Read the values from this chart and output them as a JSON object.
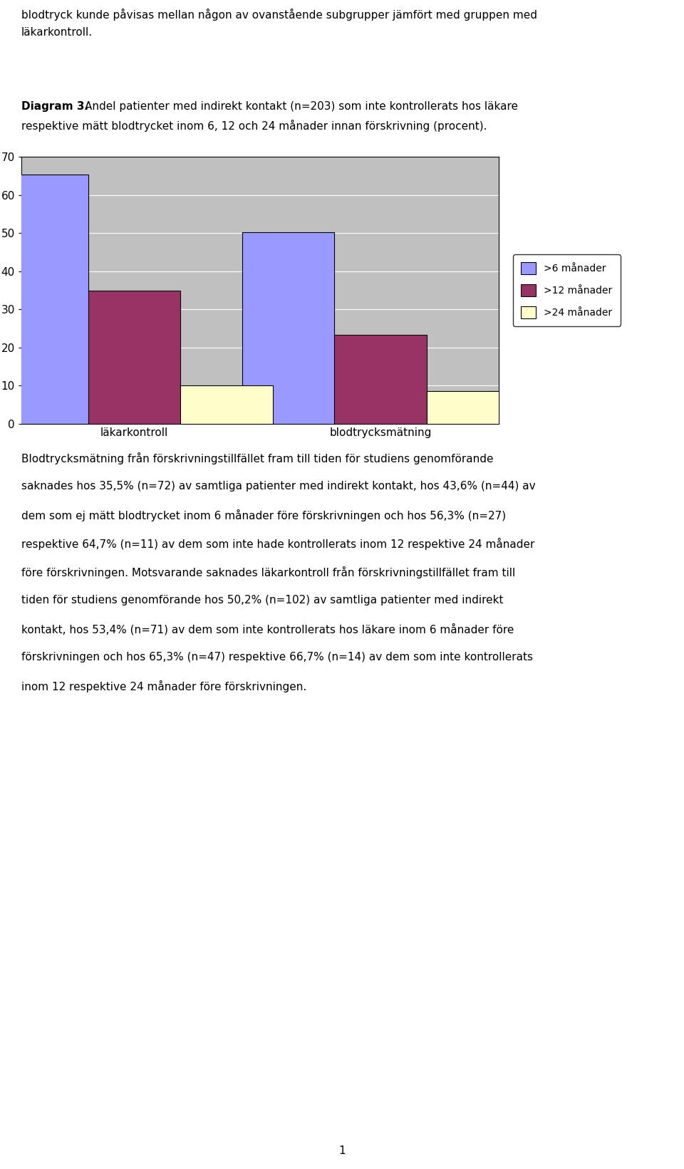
{
  "categories": [
    "läkarkontroll",
    "blodtrycksmätning"
  ],
  "series": [
    {
      "label": ">6 månader",
      "values": [
        65.3,
        50.2
      ],
      "color": "#9999FF"
    },
    {
      "label": ">12 månader",
      "values": [
        35.0,
        23.3
      ],
      "color": "#993366"
    },
    {
      "label": ">24 månader",
      "values": [
        10.0,
        8.5
      ],
      "color": "#FFFFCC"
    }
  ],
  "ylabel": "%",
  "ylim": [
    0,
    70
  ],
  "yticks": [
    0,
    10,
    20,
    30,
    40,
    50,
    60,
    70
  ],
  "plot_bg_color": "#C0C0C0",
  "bar_width": 0.18,
  "figure_bg": "#FFFFFF",
  "axis_color": "#000000",
  "grid_color": "#FFFFFF",
  "page_title_line1": "blodtryck kunde påvisas mellan någon av ovanstående subgrupper jämfört med gruppen med",
  "page_title_line2": "läkarkontroll.",
  "diagram_label": "Diagram 3.",
  "diagram_desc_line1": "Andel patienter med indirekt kontakt (n=203) som inte kontrollerats hos läkare",
  "diagram_desc_line2": "respektive mätt blodtrycket inom 6, 12 och 24 månader innan förskrivning (procent).",
  "body_lines": [
    "Blodtrycksmätning från förskrivningstillfället fram till tiden för studiens genomförande",
    "saknades hos 35,5% (n=72) av samtliga patienter med indirekt kontakt, hos 43,6% (n=44) av",
    "dem som ej mätt blodtrycket inom 6 månader före förskrivningen och hos 56,3% (n=27)",
    "respektive 64,7% (n=11) av dem som inte hade kontrollerats inom 12 respektive 24 månader",
    "före förskrivningen. Motsvarande saknades läkarkontroll från förskrivningstillfället fram till",
    "tiden för studiens genomförande hos 50,2% (n=102) av samtliga patienter med indirekt",
    "kontakt, hos 53,4% (n=71) av dem som inte kontrollerats hos läkare inom 6 månader före",
    "förskrivningen och hos 65,3% (n=47) respektive 66,7% (n=14) av dem som inte kontrollerats",
    "inom 12 respektive 24 månader före förskrivningen."
  ],
  "footer_text": "1"
}
